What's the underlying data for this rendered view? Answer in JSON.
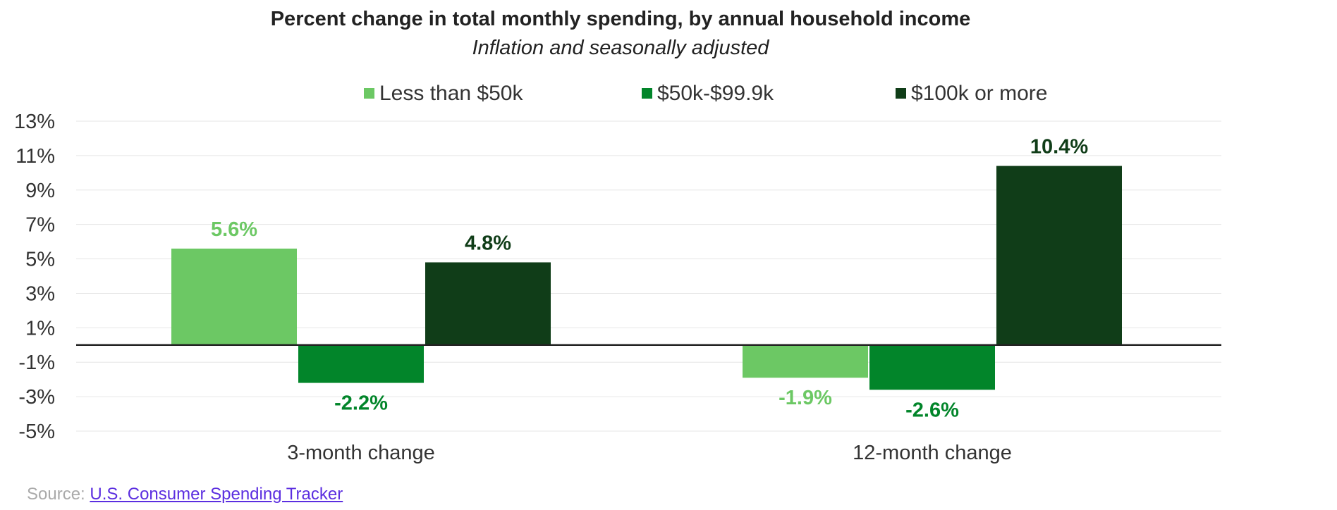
{
  "chart_data": {
    "type": "bar",
    "title": "Percent change in total monthly spending, by annual household income",
    "subtitle": "Inflation and seasonally adjusted",
    "categories": [
      "3-month change",
      "12-month change"
    ],
    "series": [
      {
        "name": "Less than $50k",
        "values": [
          5.6,
          -1.9
        ],
        "color": "#6cc864"
      },
      {
        "name": "$50k-$99.9k",
        "values": [
          -2.2,
          -2.6
        ],
        "color": "#02852a"
      },
      {
        "name": "$100k or more",
        "values": [
          4.8,
          10.4
        ],
        "color": "#103d18"
      }
    ],
    "data_labels": [
      [
        "5.6%",
        "-1.9%"
      ],
      [
        "-2.2%",
        "-2.6%"
      ],
      [
        "4.8%",
        "10.4%"
      ]
    ],
    "y_ticks": [
      "13%",
      "11%",
      "9%",
      "7%",
      "5%",
      "3%",
      "1%",
      "-1%",
      "-3%",
      "-5%"
    ],
    "y_tick_values": [
      13,
      11,
      9,
      7,
      5,
      3,
      1,
      -1,
      -3,
      -5
    ],
    "ylim": [
      -5,
      13
    ],
    "xlabel": "",
    "ylabel": "",
    "grid": true,
    "legend_position": "top"
  },
  "source": {
    "prefix": "Source: ",
    "link_text": "U.S. Consumer Spending Tracker"
  }
}
